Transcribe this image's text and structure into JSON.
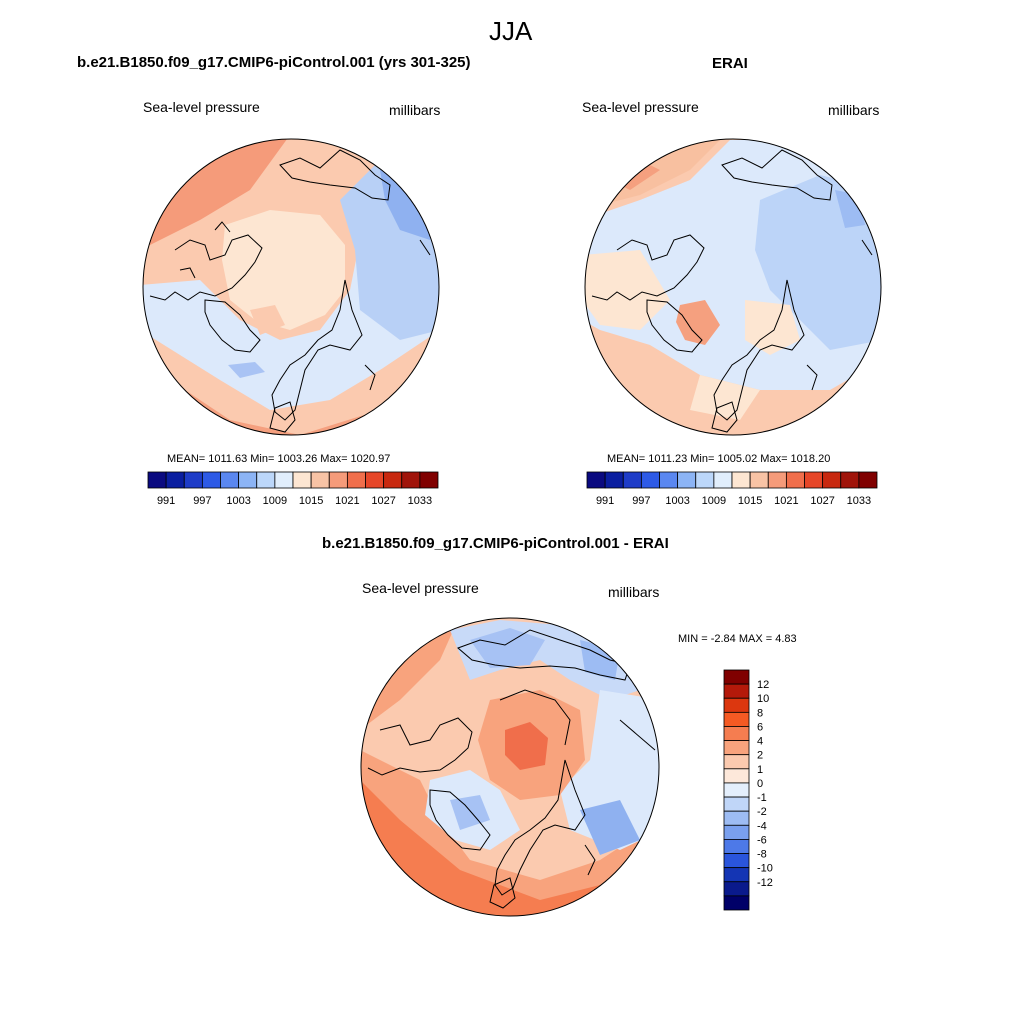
{
  "page_title": "JJA",
  "panels": {
    "model": {
      "title": "b.e21.B1850.f09_g17.CMIP6-piControl.001 (yrs 301-325)",
      "left_label": "Sea-level pressure",
      "right_label": "millibars",
      "stats": "MEAN= 1011.63  Min= 1003.26  Max= 1020.97"
    },
    "obs": {
      "title": "ERAI",
      "left_label": "Sea-level pressure",
      "right_label": "millibars",
      "stats": "MEAN= 1011.23  Min= 1005.02  Max= 1018.20"
    },
    "diff": {
      "title": "b.e21.B1850.f09_g17.CMIP6-piControl.001 - ERAI",
      "left_label": "Sea-level pressure",
      "right_label": "millibars",
      "stats": "MIN =  -2.84 MAX =   4.83"
    }
  },
  "abs_colorbar": {
    "colors": [
      "#0a0a80",
      "#0a1ea0",
      "#1e3cc8",
      "#2d5ae6",
      "#5a87f0",
      "#8cb4f5",
      "#bcd7fa",
      "#e1eefc",
      "#fde6d2",
      "#f8c3a5",
      "#f59b7a",
      "#f06e4b",
      "#e64628",
      "#c8280f",
      "#a0140a",
      "#800000"
    ],
    "ticks": [
      "991",
      "997",
      "1003",
      "1009",
      "1015",
      "1021",
      "1027",
      "1033"
    ]
  },
  "diff_colorbar": {
    "colors": [
      "#800000",
      "#b4190a",
      "#dc370f",
      "#f55a23",
      "#f57d50",
      "#f8a37d",
      "#fbcaaf",
      "#fde8da",
      "#e4effc",
      "#c0d6f8",
      "#9dbcf3",
      "#7aa0ee",
      "#4d79e8",
      "#2a55dc",
      "#1435b4",
      "#0a1a8c",
      "#000068"
    ],
    "ticks": [
      "12",
      "10",
      "8",
      "6",
      "4",
      "2",
      "1",
      "0",
      "-1",
      "-2",
      "-4",
      "-6",
      "-8",
      "-10",
      "-12"
    ]
  }
}
